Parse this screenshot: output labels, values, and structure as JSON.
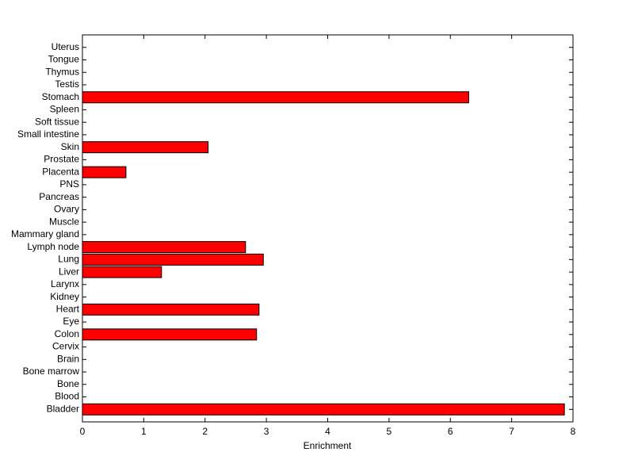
{
  "chart_data": {
    "type": "barh",
    "xlabel": "Enrichment",
    "categories": [
      "Bladder",
      "Blood",
      "Bone",
      "Bone marrow",
      "Brain",
      "Cervix",
      "Colon",
      "Eye",
      "Heart",
      "Kidney",
      "Larynx",
      "Liver",
      "Lung",
      "Lymph node",
      "Mammary gland",
      "Muscle",
      "Ovary",
      "Pancreas",
      "PNS",
      "Placenta",
      "Prostate",
      "Skin",
      "Small intestine",
      "Soft tissue",
      "Spleen",
      "Stomach",
      "Testis",
      "Thymus",
      "Tongue",
      "Uterus"
    ],
    "values": [
      7.86,
      0,
      0,
      0,
      0,
      0,
      2.84,
      0,
      2.88,
      0,
      0,
      1.29,
      2.95,
      2.66,
      0,
      0,
      0,
      0,
      0,
      0.71,
      0,
      2.05,
      0,
      0,
      0,
      6.3,
      0,
      0,
      0,
      0
    ],
    "color": "#ff0000",
    "xlim": [
      0,
      8
    ],
    "xticks": [
      0,
      1,
      2,
      3,
      4,
      5,
      6,
      7,
      8
    ]
  }
}
